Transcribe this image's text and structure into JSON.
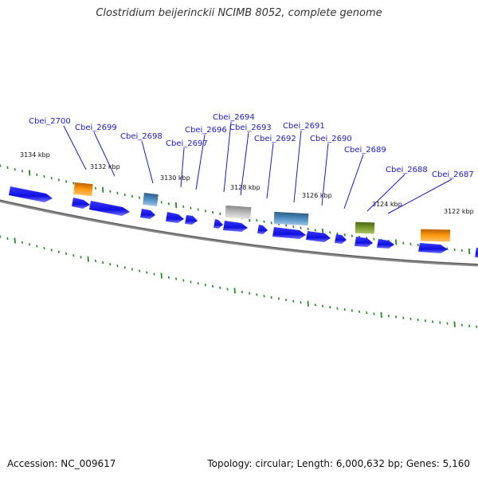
{
  "title": "Clostridium beijerinckii NCIMB 8052, complete genome",
  "footer": {
    "accession": "Accession: NC_009617",
    "summary": "Topology: circular; Length: 6,000,632 bp; Genes: 5,160"
  },
  "colors": {
    "backbone": "#777777",
    "tick": "#228b22",
    "label": "#1a1acc",
    "gene_blue": "#1414e6",
    "gene_orange": "#ff8c00",
    "gene_steel": "#4682b4",
    "gene_gray": "#b0b0b0",
    "gene_olive": "#6b8e23"
  },
  "kbp_labels": [
    "3134 kbp",
    "3132 kbp",
    "3130 kbp",
    "3128 kbp",
    "3126 kbp",
    "3124 kbp",
    "3122 kbp"
  ],
  "gene_labels": [
    "Cbei_2700",
    "Cbei_2699",
    "Cbei_2698",
    "Cbei_2697",
    "Cbei_2696",
    "Cbei_2694",
    "Cbei_2693",
    "Cbei_2692",
    "Cbei_2691",
    "Cbei_2690",
    "Cbei_2689",
    "Cbei_2688",
    "Cbei_2687"
  ]
}
